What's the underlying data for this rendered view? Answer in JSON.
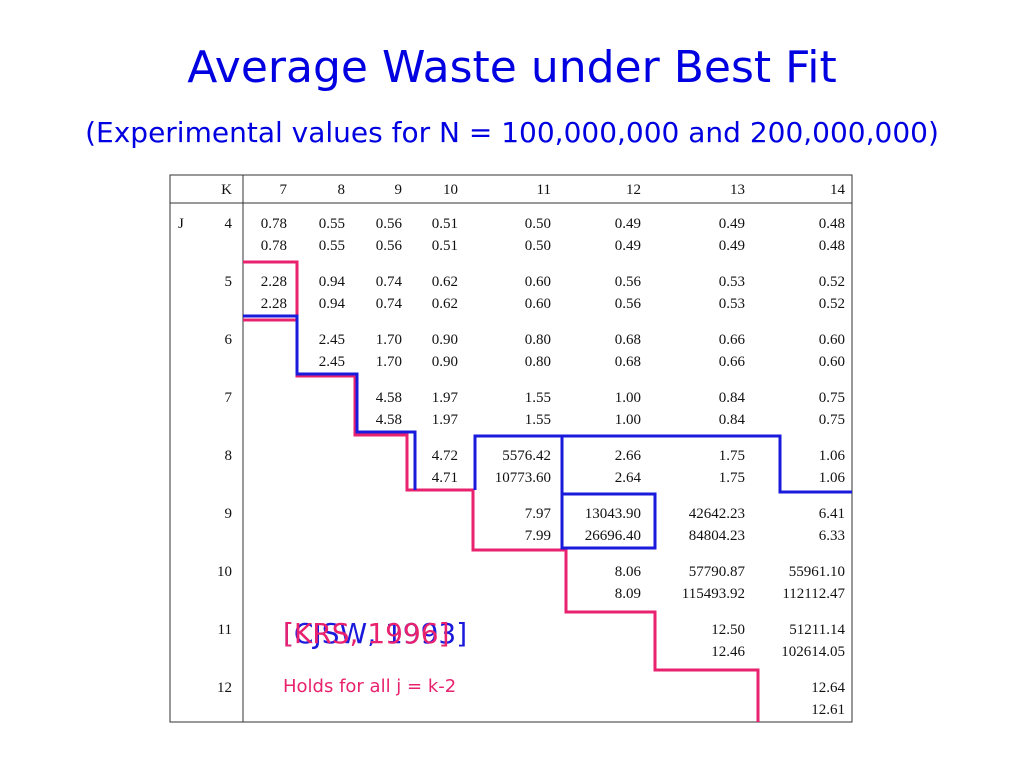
{
  "title": "Average Waste under Best Fit",
  "subtitle": "(Experimental values for N = 100,000,000 and 200,000,000)",
  "table": {
    "corner_label": "K",
    "row_axis_label": "J",
    "columns": [
      "7",
      "8",
      "9",
      "10",
      "11",
      "12",
      "13",
      "14"
    ],
    "rows": [
      {
        "j": "4",
        "cells": [
          [
            "0.78",
            "0.78"
          ],
          [
            "0.55",
            "0.55"
          ],
          [
            "0.56",
            "0.56"
          ],
          [
            "0.51",
            "0.51"
          ],
          [
            "0.50",
            "0.50"
          ],
          [
            "0.49",
            "0.49"
          ],
          [
            "0.49",
            "0.49"
          ],
          [
            "0.48",
            "0.48"
          ]
        ]
      },
      {
        "j": "5",
        "cells": [
          [
            "2.28",
            "2.28"
          ],
          [
            "0.94",
            "0.94"
          ],
          [
            "0.74",
            "0.74"
          ],
          [
            "0.62",
            "0.62"
          ],
          [
            "0.60",
            "0.60"
          ],
          [
            "0.56",
            "0.56"
          ],
          [
            "0.53",
            "0.53"
          ],
          [
            "0.52",
            "0.52"
          ]
        ]
      },
      {
        "j": "6",
        "cells": [
          null,
          [
            "2.45",
            "2.45"
          ],
          [
            "1.70",
            "1.70"
          ],
          [
            "0.90",
            "0.90"
          ],
          [
            "0.80",
            "0.80"
          ],
          [
            "0.68",
            "0.68"
          ],
          [
            "0.66",
            "0.66"
          ],
          [
            "0.60",
            "0.60"
          ]
        ]
      },
      {
        "j": "7",
        "cells": [
          null,
          null,
          [
            "4.58",
            "4.58"
          ],
          [
            "1.97",
            "1.97"
          ],
          [
            "1.55",
            "1.55"
          ],
          [
            "1.00",
            "1.00"
          ],
          [
            "0.84",
            "0.84"
          ],
          [
            "0.75",
            "0.75"
          ]
        ]
      },
      {
        "j": "8",
        "cells": [
          null,
          null,
          null,
          [
            "4.72",
            "4.71"
          ],
          [
            "5576.42",
            "10773.60"
          ],
          [
            "2.66",
            "2.64"
          ],
          [
            "1.75",
            "1.75"
          ],
          [
            "1.06",
            "1.06"
          ]
        ]
      },
      {
        "j": "9",
        "cells": [
          null,
          null,
          null,
          null,
          [
            "7.97",
            "7.99"
          ],
          [
            "13043.90",
            "26696.40"
          ],
          [
            "42642.23",
            "84804.23"
          ],
          [
            "6.41",
            "6.33"
          ]
        ]
      },
      {
        "j": "10",
        "cells": [
          null,
          null,
          null,
          null,
          null,
          [
            "8.06",
            "8.09"
          ],
          [
            "57790.87",
            "115493.92"
          ],
          [
            "55961.10",
            "112112.47"
          ]
        ]
      },
      {
        "j": "11",
        "cells": [
          null,
          null,
          null,
          null,
          null,
          null,
          [
            "12.50",
            "12.46"
          ],
          [
            "51211.14",
            "102614.05"
          ]
        ]
      },
      {
        "j": "12",
        "cells": [
          null,
          null,
          null,
          null,
          null,
          null,
          null,
          [
            "12.64",
            "12.61"
          ]
        ]
      }
    ]
  },
  "citation_blue": "[CJSW, 1993]",
  "citation_red": "[KRS, 1996]",
  "note": "Holds for all j = k-2"
}
